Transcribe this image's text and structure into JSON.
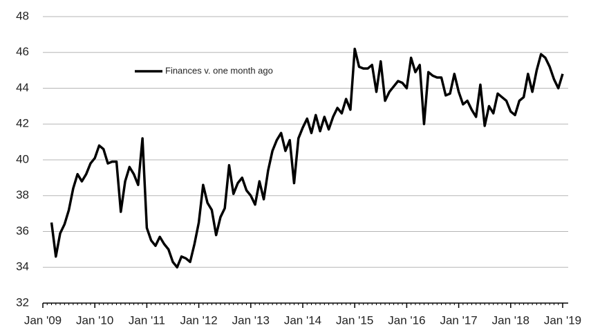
{
  "chart_data": {
    "type": "line",
    "x": [
      "2009-03",
      "2009-04",
      "2009-05",
      "2009-06",
      "2009-07",
      "2009-08",
      "2009-09",
      "2009-10",
      "2009-11",
      "2009-12",
      "2010-01",
      "2010-02",
      "2010-03",
      "2010-04",
      "2010-05",
      "2010-06",
      "2010-07",
      "2010-08",
      "2010-09",
      "2010-10",
      "2010-11",
      "2010-12",
      "2011-01",
      "2011-02",
      "2011-03",
      "2011-04",
      "2011-05",
      "2011-06",
      "2011-07",
      "2011-08",
      "2011-09",
      "2011-10",
      "2011-11",
      "2011-12",
      "2012-01",
      "2012-02",
      "2012-03",
      "2012-04",
      "2012-05",
      "2012-06",
      "2012-07",
      "2012-08",
      "2012-09",
      "2012-10",
      "2012-11",
      "2012-12",
      "2013-01",
      "2013-02",
      "2013-03",
      "2013-04",
      "2013-05",
      "2013-06",
      "2013-07",
      "2013-08",
      "2013-09",
      "2013-10",
      "2013-11",
      "2013-12",
      "2014-01",
      "2014-02",
      "2014-03",
      "2014-04",
      "2014-05",
      "2014-06",
      "2014-07",
      "2014-08",
      "2014-09",
      "2014-10",
      "2014-11",
      "2014-12",
      "2015-01",
      "2015-02",
      "2015-03",
      "2015-04",
      "2015-05",
      "2015-06",
      "2015-07",
      "2015-08",
      "2015-09",
      "2015-10",
      "2015-11",
      "2015-12",
      "2016-01",
      "2016-02",
      "2016-03",
      "2016-04",
      "2016-05",
      "2016-06",
      "2016-07",
      "2016-08",
      "2016-09",
      "2016-10",
      "2016-11",
      "2016-12",
      "2017-01",
      "2017-02",
      "2017-03",
      "2017-04",
      "2017-05",
      "2017-06",
      "2017-07",
      "2017-08",
      "2017-09",
      "2017-10",
      "2017-11",
      "2017-12",
      "2018-01",
      "2018-02",
      "2018-03",
      "2018-04",
      "2018-05",
      "2018-06",
      "2018-07",
      "2018-08",
      "2018-09",
      "2018-10",
      "2018-11",
      "2018-12",
      "2019-01"
    ],
    "series": [
      {
        "name": "Finances v. one month ago",
        "color": "#000000",
        "values": [
          36.5,
          34.6,
          35.9,
          36.4,
          37.2,
          38.4,
          39.2,
          38.8,
          39.2,
          39.8,
          40.1,
          40.8,
          40.6,
          39.8,
          39.9,
          39.9,
          37.1,
          38.8,
          39.6,
          39.2,
          38.6,
          41.2,
          36.2,
          35.5,
          35.2,
          35.7,
          35.3,
          35.0,
          34.3,
          34.0,
          34.6,
          34.5,
          34.3,
          35.3,
          36.5,
          38.6,
          37.6,
          37.2,
          35.8,
          36.8,
          37.3,
          39.7,
          38.1,
          38.7,
          39.0,
          38.3,
          38.0,
          37.5,
          38.8,
          37.8,
          39.4,
          40.5,
          41.1,
          41.5,
          40.5,
          41.1,
          38.7,
          41.2,
          41.8,
          42.3,
          41.5,
          42.5,
          41.6,
          42.4,
          41.7,
          42.4,
          42.9,
          42.6,
          43.4,
          42.8,
          46.2,
          45.2,
          45.1,
          45.1,
          45.3,
          43.8,
          45.5,
          43.3,
          43.8,
          44.1,
          44.4,
          44.3,
          44.0,
          45.7,
          44.9,
          45.3,
          42.0,
          44.9,
          44.7,
          44.6,
          44.6,
          43.6,
          43.7,
          44.8,
          43.8,
          43.1,
          43.3,
          42.8,
          42.4,
          44.2,
          41.9,
          43.0,
          42.6,
          43.7,
          43.5,
          43.3,
          42.7,
          42.5,
          43.3,
          43.5,
          44.8,
          43.8,
          45.0,
          45.9,
          45.7,
          45.2,
          44.5,
          44.0,
          44.8
        ]
      }
    ],
    "xlim": [
      "2009-01",
      "2019-01"
    ],
    "xticks": [
      {
        "value": "2009-01",
        "label": "Jan '09"
      },
      {
        "value": "2010-01",
        "label": "Jan '10"
      },
      {
        "value": "2011-01",
        "label": "Jan '11"
      },
      {
        "value": "2012-01",
        "label": "Jan '12"
      },
      {
        "value": "2013-01",
        "label": "Jan '13"
      },
      {
        "value": "2014-01",
        "label": "Jan '14"
      },
      {
        "value": "2015-01",
        "label": "Jan '15"
      },
      {
        "value": "2016-01",
        "label": "Jan '16"
      },
      {
        "value": "2017-01",
        "label": "Jan '17"
      },
      {
        "value": "2018-01",
        "label": "Jan '18"
      },
      {
        "value": "2019-01",
        "label": "Jan '19"
      }
    ],
    "ylim": [
      32,
      48
    ],
    "yticks": [
      32,
      34,
      36,
      38,
      40,
      42,
      44,
      46,
      48
    ],
    "grid": true,
    "legend": "top-left"
  }
}
